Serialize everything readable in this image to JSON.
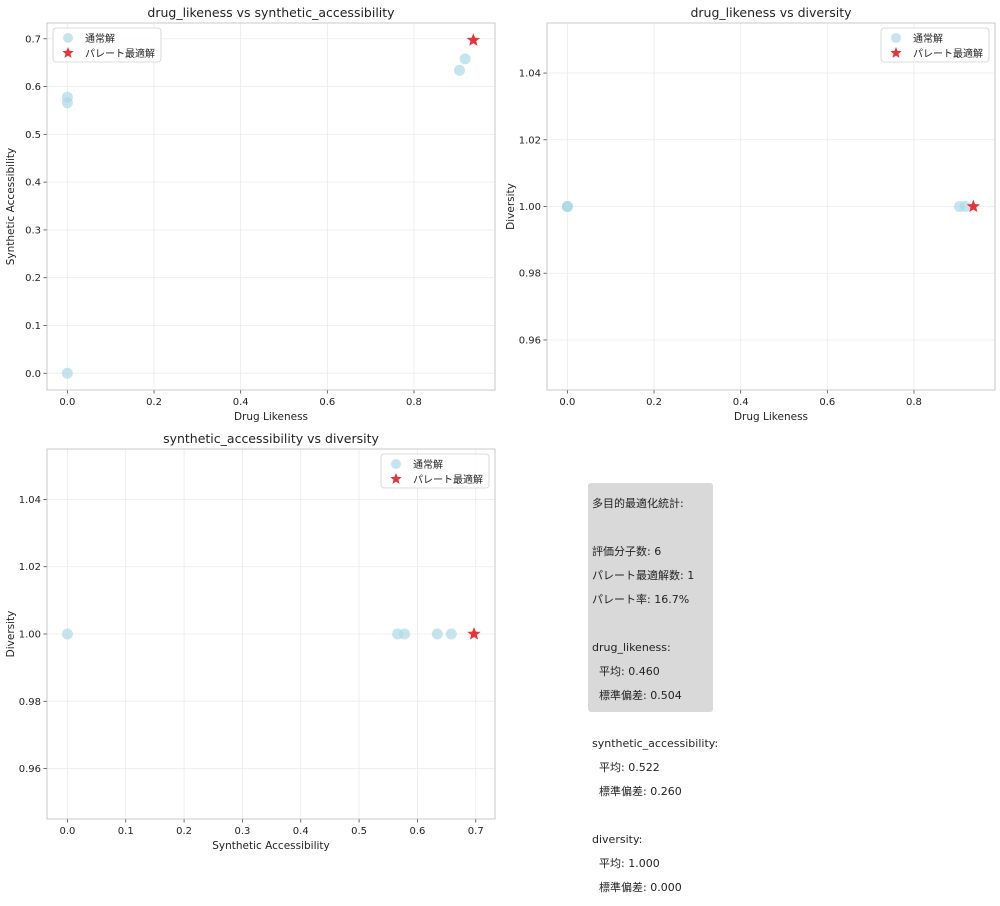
{
  "chart_data": [
    {
      "type": "scatter",
      "title": "drug_likeness vs synthetic_accessibility",
      "xlabel": "Drug Likeness",
      "ylabel": "Synthetic Accessibility",
      "xlim": [
        -0.047,
        0.987
      ],
      "ylim": [
        -0.035,
        0.733
      ],
      "xticks": [
        0.0,
        0.2,
        0.4,
        0.6,
        0.8
      ],
      "yticks": [
        0.0,
        0.1,
        0.2,
        0.3,
        0.4,
        0.5,
        0.6,
        0.7
      ],
      "tick_decimals": [
        1,
        1
      ],
      "grid": true,
      "legend": "top-left",
      "series": [
        {
          "name": "通常解",
          "marker": "circle",
          "color": "#add8e6",
          "points": [
            [
              0.0,
              0.0
            ],
            [
              0.0,
              0.566
            ],
            [
              0.0,
              0.578
            ],
            [
              0.905,
              0.634
            ],
            [
              0.918,
              0.658
            ]
          ]
        },
        {
          "name": "パレート最適解",
          "marker": "star",
          "color": "#e8282b",
          "points": [
            [
              0.937,
              0.697
            ]
          ]
        }
      ]
    },
    {
      "type": "scatter",
      "title": "drug_likeness vs diversity",
      "xlabel": "Drug Likeness",
      "ylabel": "Diversity",
      "xlim": [
        -0.047,
        0.987
      ],
      "ylim": [
        0.945,
        1.055
      ],
      "xticks": [
        0.0,
        0.2,
        0.4,
        0.6,
        0.8
      ],
      "yticks": [
        0.96,
        0.98,
        1.0,
        1.02,
        1.04
      ],
      "tick_decimals": [
        1,
        2
      ],
      "grid": true,
      "legend": "top-right",
      "series": [
        {
          "name": "通常解",
          "marker": "circle",
          "color": "#add8e6",
          "points": [
            [
              0.0,
              1.0
            ],
            [
              0.0,
              1.0
            ],
            [
              0.0,
              1.0
            ],
            [
              0.905,
              1.0
            ],
            [
              0.918,
              1.0
            ]
          ]
        },
        {
          "name": "パレート最適解",
          "marker": "star",
          "color": "#e8282b",
          "points": [
            [
              0.937,
              1.0
            ]
          ]
        }
      ]
    },
    {
      "type": "scatter",
      "title": "synthetic_accessibility vs diversity",
      "xlabel": "Synthetic Accessibility",
      "ylabel": "Diversity",
      "xlim": [
        -0.035,
        0.733
      ],
      "ylim": [
        0.945,
        1.055
      ],
      "xticks": [
        0.0,
        0.1,
        0.2,
        0.3,
        0.4,
        0.5,
        0.6,
        0.7
      ],
      "yticks": [
        0.96,
        0.98,
        1.0,
        1.02,
        1.04
      ],
      "tick_decimals": [
        1,
        2
      ],
      "grid": true,
      "legend": "top-right",
      "series": [
        {
          "name": "通常解",
          "marker": "circle",
          "color": "#add8e6",
          "points": [
            [
              0.0,
              1.0
            ],
            [
              0.566,
              1.0
            ],
            [
              0.578,
              1.0
            ],
            [
              0.634,
              1.0
            ],
            [
              0.658,
              1.0
            ]
          ]
        },
        {
          "name": "パレート最適解",
          "marker": "star",
          "color": "#e8282b",
          "points": [
            [
              0.697,
              1.0
            ]
          ]
        }
      ]
    }
  ],
  "stats": {
    "title": "多目的最適化統計:",
    "lines": [
      "評価分子数: 6",
      "パレート最適解数: 1",
      "パレート率: 16.7%",
      "drug_likeness:",
      "  平均: 0.460",
      "  標準偏差: 0.504",
      "synthetic_accessibility:",
      "  平均: 0.522",
      "  標準偏差: 0.260",
      "diversity:",
      "  平均: 1.000",
      "  標準偏差: 0.000"
    ]
  }
}
